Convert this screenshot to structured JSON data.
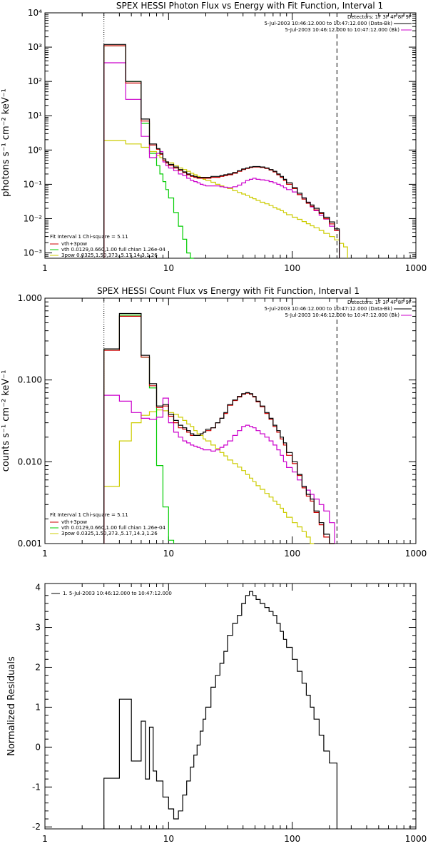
{
  "colors": {
    "data": "#000000",
    "total": "#cc0000",
    "thermal": "#00cc00",
    "power_law": "#cccc00",
    "background": "#cc00cc"
  },
  "chart_data": [
    {
      "id": "photon",
      "type": "line",
      "title": "SPEX HESSI Photon Flux vs Energy with Fit Function, Interval 1",
      "xlabel": "",
      "ylabel": "photons s⁻¹ cm⁻² keV⁻¹",
      "xscale": "log",
      "yscale": "log",
      "xlim": [
        1,
        1000
      ],
      "ylim": [
        0.0007,
        10000
      ],
      "x_ticks": [
        "1",
        "10",
        "100",
        "1000"
      ],
      "y_ticks": [
        "10⁻³",
        "10⁻²",
        "10⁻¹",
        "10⁰",
        "10¹",
        "10²",
        "10³",
        "10⁴"
      ],
      "vlines": [
        {
          "x": 3,
          "style": "dotted"
        },
        {
          "x": 230,
          "style": "dashed"
        }
      ],
      "detector_note": "Detectors: 1F 3F 4F 8F 9F",
      "time_legend": [
        {
          "label": "5-Jul-2003 10:46:12.000 to 10:47:12.000 (Data-Bk)",
          "color": "#000000"
        },
        {
          "label": "5-Jul-2003 10:46:12.000 to 10:47:12.000 (Bk)",
          "color": "#cc00cc"
        }
      ],
      "fit_legend": {
        "header": "Fit Interval 1   Chi-square = 5.11",
        "entries": [
          {
            "label": "vth+3pow",
            "color": "#cc0000"
          },
          {
            "label": "vth 0.0129,0.660,1.00  full chian 1.26e-04",
            "color": "#00cc00"
          },
          {
            "label": "3pow 0.0325,1.50,373.,5.17,14.3,1.26",
            "color": "#cccc00"
          }
        ]
      },
      "edges": [
        3,
        3.5,
        4,
        4.5,
        5,
        5.5,
        6,
        6.5,
        7,
        7.5,
        8,
        8.5,
        9,
        9.5,
        10,
        11,
        12,
        13,
        14,
        15,
        16,
        17,
        18,
        19,
        20,
        22,
        24,
        26,
        28,
        30,
        33,
        36,
        39,
        42,
        45,
        48,
        51,
        55,
        60,
        65,
        70,
        75,
        80,
        85,
        90,
        100,
        110,
        120,
        130,
        140,
        150,
        165,
        180,
        200,
        220,
        240,
        260,
        280
      ],
      "series": [
        {
          "key": "data",
          "values": [
            1200,
            1200,
            1200,
            100,
            100,
            100,
            8,
            8,
            1.5,
            1.5,
            1.1,
            0.8,
            0.55,
            0.45,
            0.38,
            0.32,
            0.27,
            0.23,
            0.2,
            0.18,
            0.17,
            0.16,
            0.16,
            0.16,
            0.16,
            0.17,
            0.17,
            0.18,
            0.19,
            0.2,
            0.22,
            0.25,
            0.28,
            0.3,
            0.32,
            0.33,
            0.33,
            0.32,
            0.3,
            0.27,
            0.24,
            0.2,
            0.17,
            0.14,
            0.11,
            0.08,
            0.055,
            0.04,
            0.03,
            0.025,
            0.02,
            0.015,
            0.011,
            0.008,
            0.005,
            null,
            null
          ]
        },
        {
          "key": "total",
          "values": [
            1100,
            1100,
            1100,
            90,
            90,
            90,
            7,
            7,
            1.4,
            1.4,
            1.05,
            0.75,
            0.5,
            0.42,
            0.35,
            0.3,
            0.25,
            0.22,
            0.19,
            0.17,
            0.16,
            0.15,
            0.15,
            0.15,
            0.15,
            0.16,
            0.16,
            0.17,
            0.18,
            0.19,
            0.21,
            0.24,
            0.27,
            0.29,
            0.31,
            0.32,
            0.32,
            0.31,
            0.29,
            0.26,
            0.23,
            0.19,
            0.16,
            0.13,
            0.1,
            0.075,
            0.05,
            0.037,
            0.028,
            0.023,
            0.018,
            0.014,
            0.01,
            0.007,
            0.0045,
            null,
            null
          ]
        },
        {
          "key": "thermal",
          "values": [
            1100,
            1100,
            1100,
            100,
            100,
            100,
            6,
            6,
            0.8,
            0.8,
            0.35,
            0.2,
            0.12,
            0.07,
            0.04,
            0.015,
            0.006,
            0.0025,
            0.001,
            0.0004,
            null,
            null,
            null,
            null,
            null,
            null,
            null,
            null,
            null,
            null,
            null,
            null,
            null,
            null,
            null,
            null,
            null,
            null,
            null,
            null,
            null,
            null,
            null,
            null,
            null,
            null,
            null,
            null,
            null,
            null,
            null,
            null,
            null,
            null,
            null,
            null,
            null
          ]
        },
        {
          "key": "power_law",
          "values": [
            1.9,
            1.9,
            1.9,
            1.5,
            1.5,
            1.5,
            1.2,
            1.2,
            0.9,
            0.9,
            0.7,
            0.6,
            0.5,
            0.45,
            0.42,
            0.35,
            0.3,
            0.27,
            0.24,
            0.21,
            0.19,
            0.17,
            0.155,
            0.14,
            0.13,
            0.115,
            0.1,
            0.09,
            0.082,
            0.075,
            0.065,
            0.058,
            0.052,
            0.047,
            0.042,
            0.038,
            0.034,
            0.03,
            0.027,
            0.024,
            0.021,
            0.019,
            0.017,
            0.015,
            0.013,
            0.011,
            0.0095,
            0.0082,
            0.0071,
            0.0062,
            0.0054,
            0.0045,
            0.0037,
            0.003,
            0.0024,
            0.0019,
            0.0015
          ]
        },
        {
          "key": "background",
          "values": [
            350,
            350,
            350,
            30,
            30,
            30,
            2.5,
            2.5,
            0.6,
            0.6,
            0.8,
            0.9,
            0.45,
            0.35,
            0.3,
            0.25,
            0.2,
            0.18,
            0.15,
            0.13,
            0.12,
            0.11,
            0.1,
            0.095,
            0.09,
            0.09,
            0.09,
            0.085,
            0.082,
            0.08,
            0.085,
            0.095,
            0.11,
            0.13,
            0.14,
            0.15,
            0.14,
            0.135,
            0.13,
            0.12,
            0.11,
            0.1,
            0.09,
            0.08,
            0.07,
            0.06,
            0.05,
            0.04,
            0.03,
            0.022,
            0.017,
            0.0125,
            0.0097,
            0.006,
            0.0045,
            null,
            null
          ]
        }
      ]
    },
    {
      "id": "count",
      "type": "line",
      "title": "SPEX HESSI Count Flux vs Energy with Fit Function, Interval 1",
      "xlabel": "",
      "ylabel": "counts s⁻¹ cm⁻² keV⁻¹",
      "xscale": "log",
      "yscale": "log",
      "xlim": [
        1,
        1000
      ],
      "ylim": [
        0.001,
        1
      ],
      "x_ticks": [
        "1",
        "10",
        "100",
        "1000"
      ],
      "y_ticks": [
        "0.001",
        "0.010",
        "0.100",
        "1.000"
      ],
      "vlines": [
        {
          "x": 3,
          "style": "dotted"
        },
        {
          "x": 230,
          "style": "dashed"
        }
      ],
      "detector_note": "Detectors: 1F 3F 4F 8F 9F",
      "time_legend": [
        {
          "label": "5-Jul-2003 10:46:12.000 to 10:47:12.000 (Data-Bk)",
          "color": "#000000"
        },
        {
          "label": "5-Jul-2003 10:46:12.000 to 10:47:12.000 (Bk)",
          "color": "#cc00cc"
        }
      ],
      "fit_legend": {
        "header": "Fit Interval 1   Chi-square = 5.11",
        "entries": [
          {
            "label": "vth+3pow",
            "color": "#cc0000"
          },
          {
            "label": "vth 0.0129,0.660,1.00  full chian 1.26e-04",
            "color": "#00cc00"
          },
          {
            "label": "3pow 0.0325,1.50,373.,5.17,14.3,1.26",
            "color": "#cccc00"
          }
        ]
      },
      "edges": [
        3,
        4,
        5,
        6,
        7,
        8,
        9,
        10,
        11,
        12,
        13,
        14,
        15,
        16,
        17,
        18,
        19,
        20,
        22,
        24,
        26,
        28,
        30,
        33,
        36,
        39,
        42,
        45,
        48,
        51,
        55,
        60,
        65,
        70,
        75,
        80,
        85,
        90,
        100,
        110,
        120,
        130,
        140,
        150,
        165,
        180,
        200,
        220,
        240
      ],
      "series": [
        {
          "key": "data",
          "values": [
            0.24,
            0.65,
            0.65,
            0.2,
            0.09,
            0.048,
            0.05,
            0.038,
            0.032,
            0.028,
            0.026,
            0.024,
            0.022,
            0.021,
            0.021,
            0.022,
            0.023,
            0.025,
            0.026,
            0.03,
            0.034,
            0.04,
            0.05,
            0.057,
            0.063,
            0.068,
            0.07,
            0.068,
            0.063,
            0.055,
            0.048,
            0.04,
            0.034,
            0.028,
            0.024,
            0.02,
            0.017,
            0.013,
            0.01,
            0.007,
            0.005,
            0.004,
            0.0035,
            0.0025,
            0.0018,
            0.0013,
            0.001,
            null
          ]
        },
        {
          "key": "total",
          "values": [
            0.23,
            0.6,
            0.6,
            0.19,
            0.085,
            0.046,
            0.048,
            0.036,
            0.03,
            0.026,
            0.025,
            0.023,
            0.021,
            0.021,
            0.021,
            0.022,
            0.023,
            0.024,
            0.026,
            0.03,
            0.034,
            0.039,
            0.049,
            0.056,
            0.062,
            0.067,
            0.069,
            0.067,
            0.062,
            0.054,
            0.047,
            0.039,
            0.033,
            0.027,
            0.023,
            0.019,
            0.016,
            0.012,
            0.0095,
            0.0068,
            0.0048,
            0.0038,
            0.0033,
            0.0024,
            0.0017,
            0.0012,
            0.001,
            null
          ]
        },
        {
          "key": "thermal",
          "values": [
            0.24,
            0.62,
            0.62,
            0.19,
            0.08,
            0.009,
            0.0028,
            0.0011,
            null,
            null,
            null,
            null,
            null,
            null,
            null,
            null,
            null,
            null,
            null,
            null,
            null,
            null,
            null,
            null,
            null,
            null,
            null,
            null,
            null,
            null,
            null,
            null,
            null,
            null,
            null,
            null,
            null,
            null,
            null,
            null,
            null,
            null,
            null,
            null,
            null,
            null,
            null,
            null
          ]
        },
        {
          "key": "power_law",
          "values": [
            0.005,
            0.018,
            0.03,
            0.037,
            0.041,
            0.043,
            0.042,
            0.04,
            0.038,
            0.035,
            0.032,
            0.029,
            0.027,
            0.024,
            0.022,
            0.021,
            0.019,
            0.018,
            0.016,
            0.0145,
            0.013,
            0.0118,
            0.0105,
            0.0095,
            0.0086,
            0.0078,
            0.007,
            0.0063,
            0.0057,
            0.0051,
            0.0046,
            0.0041,
            0.0037,
            0.0033,
            0.003,
            0.0027,
            0.0024,
            0.0021,
            0.0018,
            0.0016,
            0.0014,
            0.0012,
            0.001,
            null,
            null,
            null,
            null,
            null
          ]
        },
        {
          "key": "background",
          "values": [
            0.065,
            0.055,
            0.04,
            0.034,
            0.033,
            0.035,
            0.06,
            0.03,
            0.023,
            0.02,
            0.018,
            0.017,
            0.016,
            0.0155,
            0.015,
            0.0145,
            0.014,
            0.014,
            0.0135,
            0.014,
            0.015,
            0.016,
            0.018,
            0.021,
            0.024,
            0.027,
            0.028,
            0.027,
            0.026,
            0.024,
            0.022,
            0.02,
            0.018,
            0.016,
            0.014,
            0.012,
            0.01,
            0.0085,
            0.0075,
            0.006,
            0.005,
            0.0045,
            0.004,
            0.0035,
            0.003,
            0.0025,
            0.0018,
            null
          ]
        }
      ]
    },
    {
      "id": "residuals",
      "type": "line",
      "title": "",
      "xlabel": "",
      "ylabel": "Normalized Residuals",
      "xscale": "log",
      "yscale": "linear",
      "xlim": [
        1,
        1000
      ],
      "ylim": [
        -2.05,
        4.1
      ],
      "x_ticks": [
        "1",
        "10",
        "100",
        "1000"
      ],
      "y_ticks": [
        "-2",
        "-1",
        "0",
        "1",
        "2",
        "3",
        "4"
      ],
      "legend": {
        "label": "1.  5-Jul-2003 10:46:12.000 to 10:47:12.000",
        "color": "#000000"
      },
      "edges": [
        3,
        4,
        5,
        6,
        6.5,
        7,
        7.5,
        8,
        9,
        10,
        11,
        12,
        13,
        14,
        15,
        16,
        17,
        18,
        19,
        20,
        22,
        24,
        26,
        28,
        30,
        33,
        36,
        39,
        42,
        45,
        48,
        51,
        55,
        60,
        65,
        70,
        75,
        80,
        85,
        90,
        100,
        110,
        120,
        130,
        140,
        150,
        165,
        180,
        200,
        230
      ],
      "values": [
        -0.78,
        1.2,
        -0.35,
        0.65,
        -0.8,
        0.5,
        -0.6,
        -0.85,
        -1.25,
        -1.55,
        -1.8,
        -1.6,
        -1.2,
        -0.85,
        -0.5,
        -0.2,
        0.05,
        0.4,
        0.7,
        1.0,
        1.5,
        1.8,
        2.1,
        2.4,
        2.8,
        3.1,
        3.3,
        3.6,
        3.8,
        3.9,
        3.8,
        3.7,
        3.6,
        3.5,
        3.4,
        3.3,
        3.1,
        2.9,
        2.7,
        2.5,
        2.2,
        1.9,
        1.6,
        1.3,
        1.0,
        0.7,
        0.3,
        -0.1,
        -0.4
      ]
    }
  ]
}
